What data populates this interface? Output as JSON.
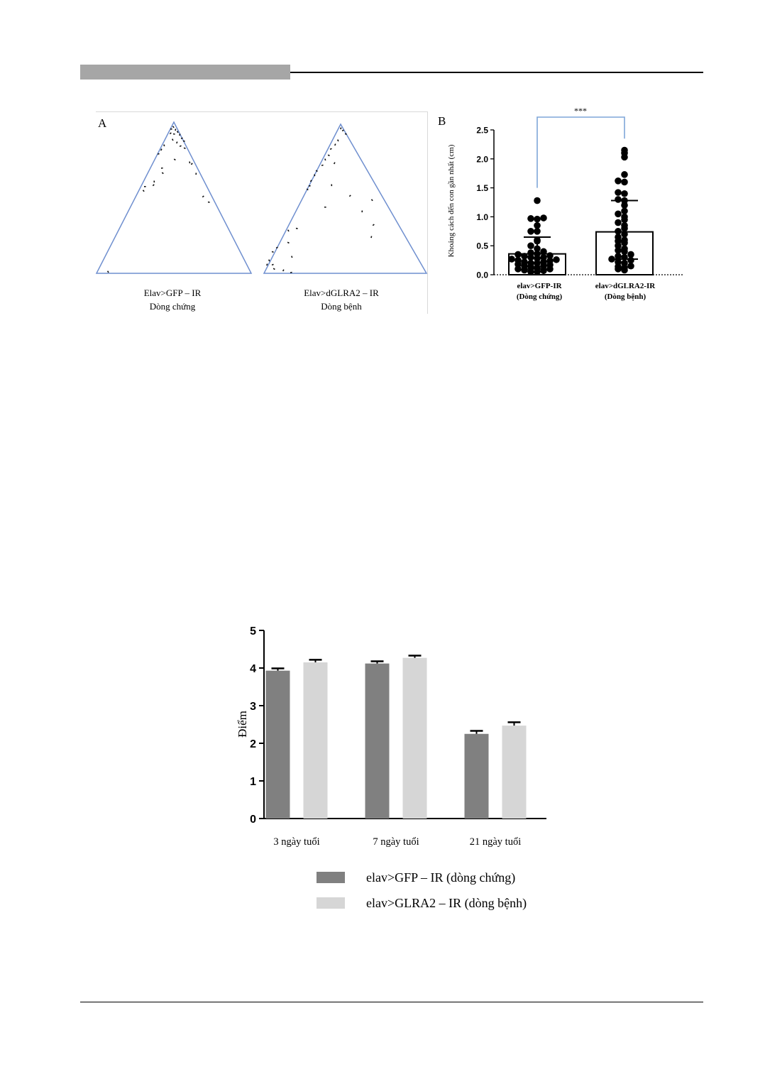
{
  "figure_a": {
    "panel_label": "A",
    "groups": [
      {
        "line1": "Elav>GFP – IR",
        "line2": "Dòng chứng"
      },
      {
        "line1": "Elav>dGLRA2 – IR",
        "line2": "Dòng bệnh"
      }
    ],
    "colors": {
      "triangle": "#6f8fcf",
      "fly": "#111111"
    }
  },
  "chart_data": [
    {
      "type": "scatter",
      "panel_label": "B",
      "title": "",
      "xlabel": "",
      "ylabel": "Khoảng cách đến con gần nhất (cm)",
      "ylim": [
        0,
        2.5
      ],
      "yticks": [
        "0.0",
        "0.5",
        "1.0",
        "1.5",
        "2.0",
        "2.5"
      ],
      "categories": [
        {
          "line1": "elav>GFP-IR",
          "line2": "(Dòng chứng)"
        },
        {
          "line1": "elav>dGLRA2-IR",
          "line2": "(Dòng bệnh)"
        }
      ],
      "bar_means": [
        0.36,
        0.74
      ],
      "error_high": [
        0.65,
        1.28
      ],
      "error_low": [
        0.1,
        0.27
      ],
      "significance": "***",
      "significance_color": "#7ea6d8",
      "grid": false,
      "series": [
        {
          "values": [
            0.05,
            0.05,
            0.07,
            0.08,
            0.1,
            0.1,
            0.12,
            0.14,
            0.15,
            0.15,
            0.17,
            0.18,
            0.2,
            0.2,
            0.22,
            0.22,
            0.24,
            0.25,
            0.26,
            0.27,
            0.28,
            0.3,
            0.3,
            0.32,
            0.33,
            0.35,
            0.36,
            0.38,
            0.4,
            0.45,
            0.5,
            0.58,
            0.6,
            0.75,
            0.75,
            0.85,
            0.96,
            0.97,
            0.98,
            1.28
          ]
        },
        {
          "values": [
            0.08,
            0.1,
            0.12,
            0.14,
            0.15,
            0.2,
            0.22,
            0.25,
            0.27,
            0.3,
            0.32,
            0.35,
            0.4,
            0.42,
            0.45,
            0.5,
            0.55,
            0.58,
            0.6,
            0.65,
            0.7,
            0.75,
            0.8,
            0.85,
            0.9,
            0.95,
            1.0,
            1.05,
            1.1,
            1.2,
            1.28,
            1.3,
            1.4,
            1.42,
            1.6,
            1.62,
            1.73,
            2.03,
            2.1,
            2.15
          ]
        }
      ]
    },
    {
      "type": "bar",
      "title": "",
      "xlabel": "",
      "ylabel": "Điểm",
      "ylim": [
        0,
        5
      ],
      "yticks": [
        "0",
        "1",
        "2",
        "3",
        "4",
        "5"
      ],
      "categories": [
        "3 ngày tuổi",
        "7 ngày tuổi",
        "21 ngày tuổi"
      ],
      "legend_position": "bottom",
      "grid": false,
      "series": [
        {
          "name": "elav>GFP – IR (dòng chứng)",
          "values": [
            3.93,
            4.12,
            2.25
          ],
          "errors": [
            0.06,
            0.06,
            0.08
          ],
          "color": "#808080"
        },
        {
          "name": "elav>GLRA2 – IR (dòng bệnh)",
          "values": [
            4.15,
            4.27,
            2.47
          ],
          "errors": [
            0.07,
            0.06,
            0.09
          ],
          "color": "#d6d6d6"
        }
      ]
    }
  ]
}
